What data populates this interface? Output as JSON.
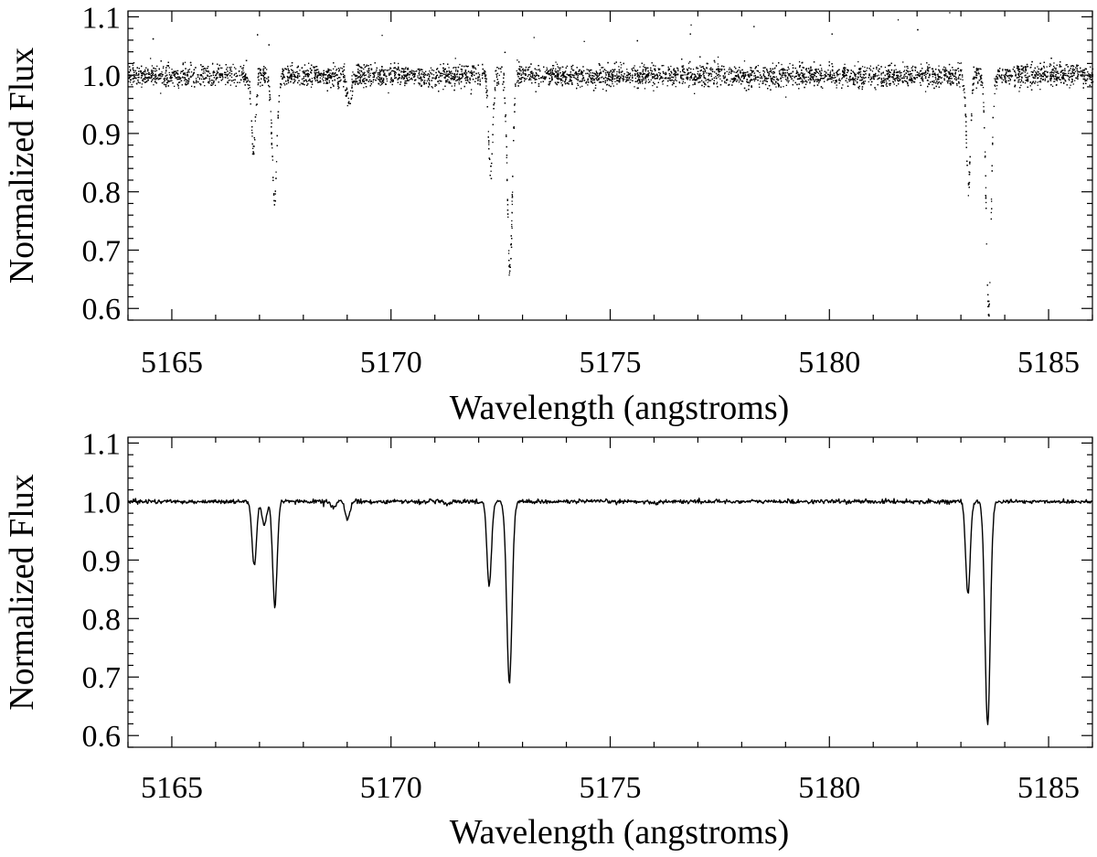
{
  "chart_data": [
    {
      "type": "scatter",
      "title": "",
      "xlabel": "Wavelength (angstroms)",
      "ylabel": "Normalized Flux",
      "xlim": [
        5164.0,
        5186.0
      ],
      "ylim": [
        0.58,
        1.11
      ],
      "x_ticks": [
        5165,
        5170,
        5175,
        5180,
        5185
      ],
      "x_tick_labels": [
        "5165",
        "5170",
        "5175",
        "5180",
        "5185"
      ],
      "y_ticks": [
        0.6,
        0.7,
        0.8,
        0.9,
        1.0,
        1.1
      ],
      "y_tick_labels": [
        "0.6",
        "0.7",
        "0.8",
        "0.9",
        "1.0",
        "1.1"
      ],
      "continuum": 1.0,
      "continuum_scatter": 0.02,
      "absorption_lines": [
        {
          "center": 5166.85,
          "min_flux": 0.87
        },
        {
          "center": 5167.33,
          "min_flux": 0.79
        },
        {
          "center": 5169.03,
          "min_flux": 0.95
        },
        {
          "center": 5172.26,
          "min_flux": 0.83
        },
        {
          "center": 5172.7,
          "min_flux": 0.66
        },
        {
          "center": 5183.16,
          "min_flux": 0.81
        },
        {
          "center": 5183.62,
          "min_flux": 0.59
        }
      ],
      "grid": false,
      "color": "#000000"
    },
    {
      "type": "line",
      "title": "",
      "xlabel": "Wavelength (angstroms)",
      "ylabel": "Normalized Flux",
      "xlim": [
        5164.0,
        5186.0
      ],
      "ylim": [
        0.58,
        1.11
      ],
      "x_ticks": [
        5165,
        5170,
        5175,
        5180,
        5185
      ],
      "x_tick_labels": [
        "5165",
        "5170",
        "5175",
        "5180",
        "5185"
      ],
      "y_ticks": [
        0.6,
        0.7,
        0.8,
        0.9,
        1.0,
        1.1
      ],
      "y_tick_labels": [
        "0.6",
        "0.7",
        "0.8",
        "0.9",
        "1.0",
        "1.1"
      ],
      "continuum": 1.0,
      "absorption_lines": [
        {
          "center": 5166.88,
          "min_flux": 0.89
        },
        {
          "center": 5167.11,
          "min_flux": 0.96
        },
        {
          "center": 5167.35,
          "min_flux": 0.82
        },
        {
          "center": 5168.68,
          "min_flux": 0.99
        },
        {
          "center": 5169.01,
          "min_flux": 0.97
        },
        {
          "center": 5171.27,
          "min_flux": 0.995
        },
        {
          "center": 5172.24,
          "min_flux": 0.855
        },
        {
          "center": 5172.7,
          "min_flux": 0.69
        },
        {
          "center": 5176.0,
          "min_flux": 0.996
        },
        {
          "center": 5183.16,
          "min_flux": 0.84
        },
        {
          "center": 5183.61,
          "min_flux": 0.62
        }
      ],
      "grid": false,
      "color": "#000000"
    }
  ]
}
